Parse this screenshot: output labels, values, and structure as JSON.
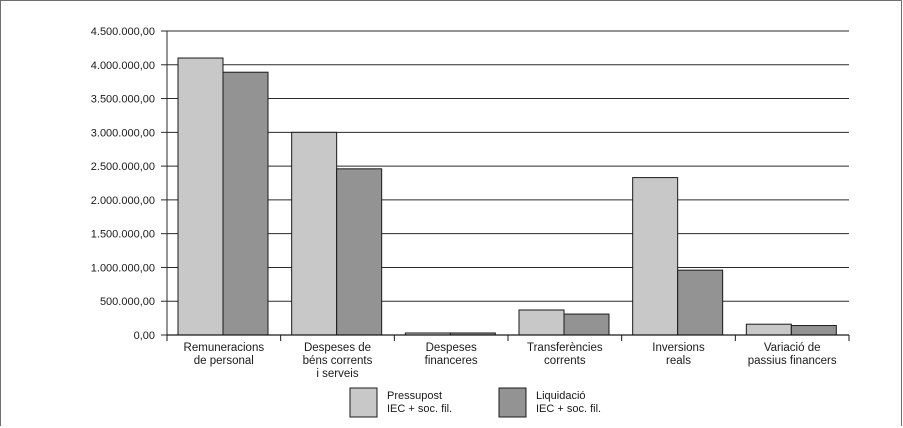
{
  "chart_data": {
    "type": "bar",
    "categories": [
      [
        "Remuneracions",
        "de personal"
      ],
      [
        "Despeses de",
        "béns corrents",
        "i serveis"
      ],
      [
        "Despeses",
        "financeres"
      ],
      [
        "Transferències",
        "corrents"
      ],
      [
        "Inversions",
        "reals"
      ],
      [
        "Variació de",
        "passius financers"
      ]
    ],
    "series": [
      {
        "name": [
          "Pressupost",
          "IEC + soc. fil."
        ],
        "color": "#c8c8c8",
        "values": [
          4100000,
          3000000,
          30000,
          370000,
          2330000,
          160000
        ]
      },
      {
        "name": [
          "Liquidació",
          "IEC + soc. fil."
        ],
        "color": "#939393",
        "values": [
          3890000,
          2460000,
          30000,
          310000,
          960000,
          140000
        ]
      }
    ],
    "yticks": [
      "0,00",
      "500.000,00",
      "1.000.000,00",
      "1.500.000,00",
      "2.000.000,00",
      "2.500.000,00",
      "3.000.000,00",
      "3.500.000,00",
      "4.000.000,00",
      "4.500.000,00"
    ],
    "ylim": [
      0,
      4500000
    ],
    "grid": true,
    "legend": "bottom"
  }
}
